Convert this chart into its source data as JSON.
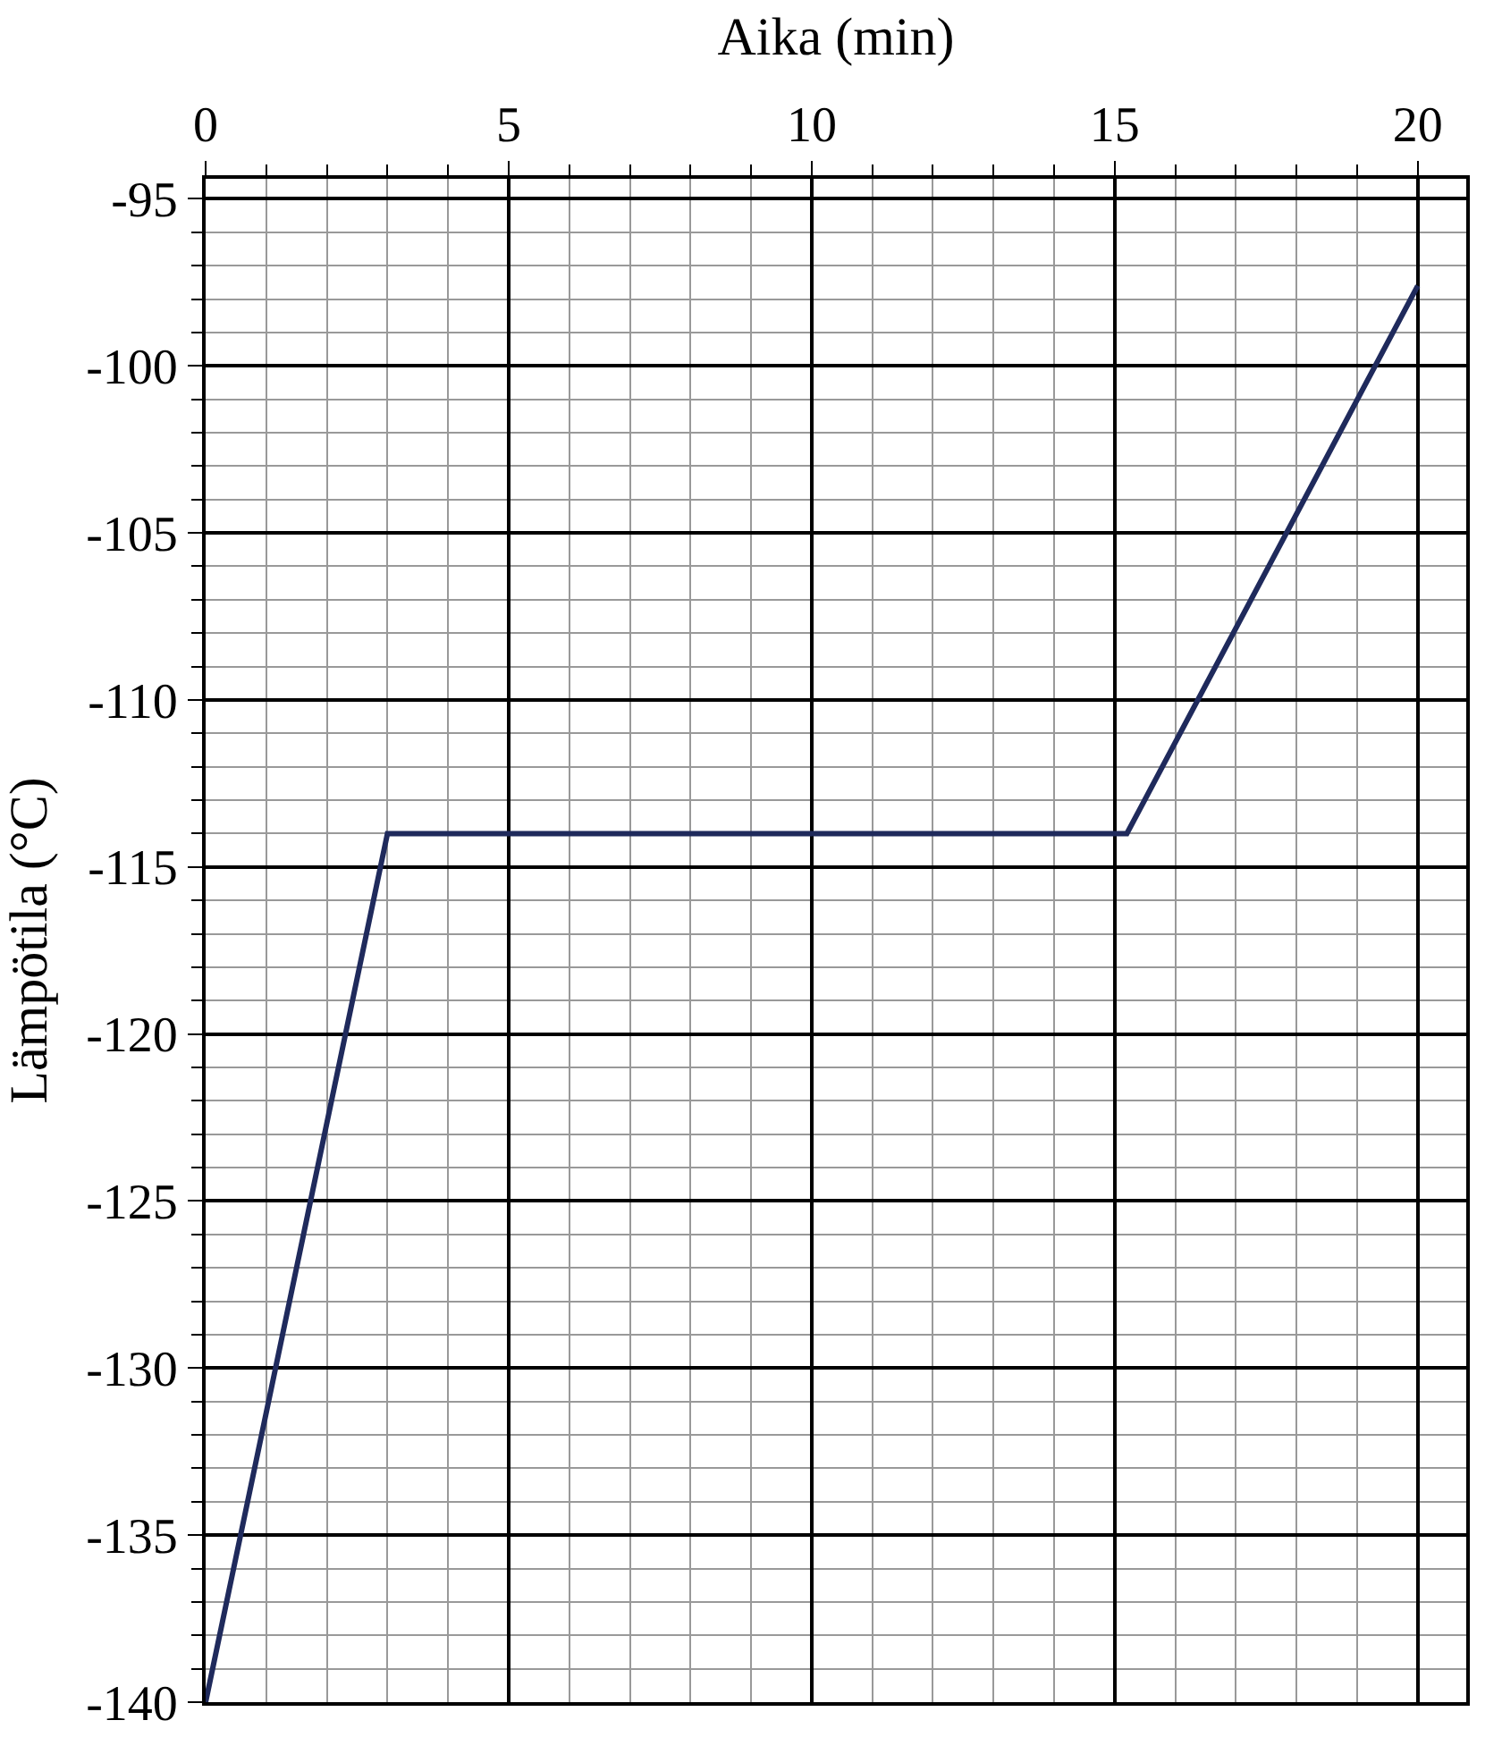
{
  "chart_data": {
    "type": "line",
    "xlabel": "Aika (min)",
    "ylabel": "Lämpötila (°C)",
    "x": [
      0,
      3,
      15.2,
      20
    ],
    "series": [
      {
        "color": "#1f2a5c",
        "values": [
          -140,
          -114,
          -114,
          -97.6
        ]
      }
    ],
    "xlim": [
      0,
      20.8
    ],
    "xticks": [
      0,
      5,
      10,
      15,
      20
    ],
    "ylim": [
      -140,
      -94.4
    ],
    "yticks": [
      -140,
      -135,
      -130,
      -125,
      -120,
      -115,
      -110,
      -105,
      -100,
      -95
    ],
    "grid": true,
    "legend": false,
    "line_style": "solid",
    "marker": "none"
  }
}
